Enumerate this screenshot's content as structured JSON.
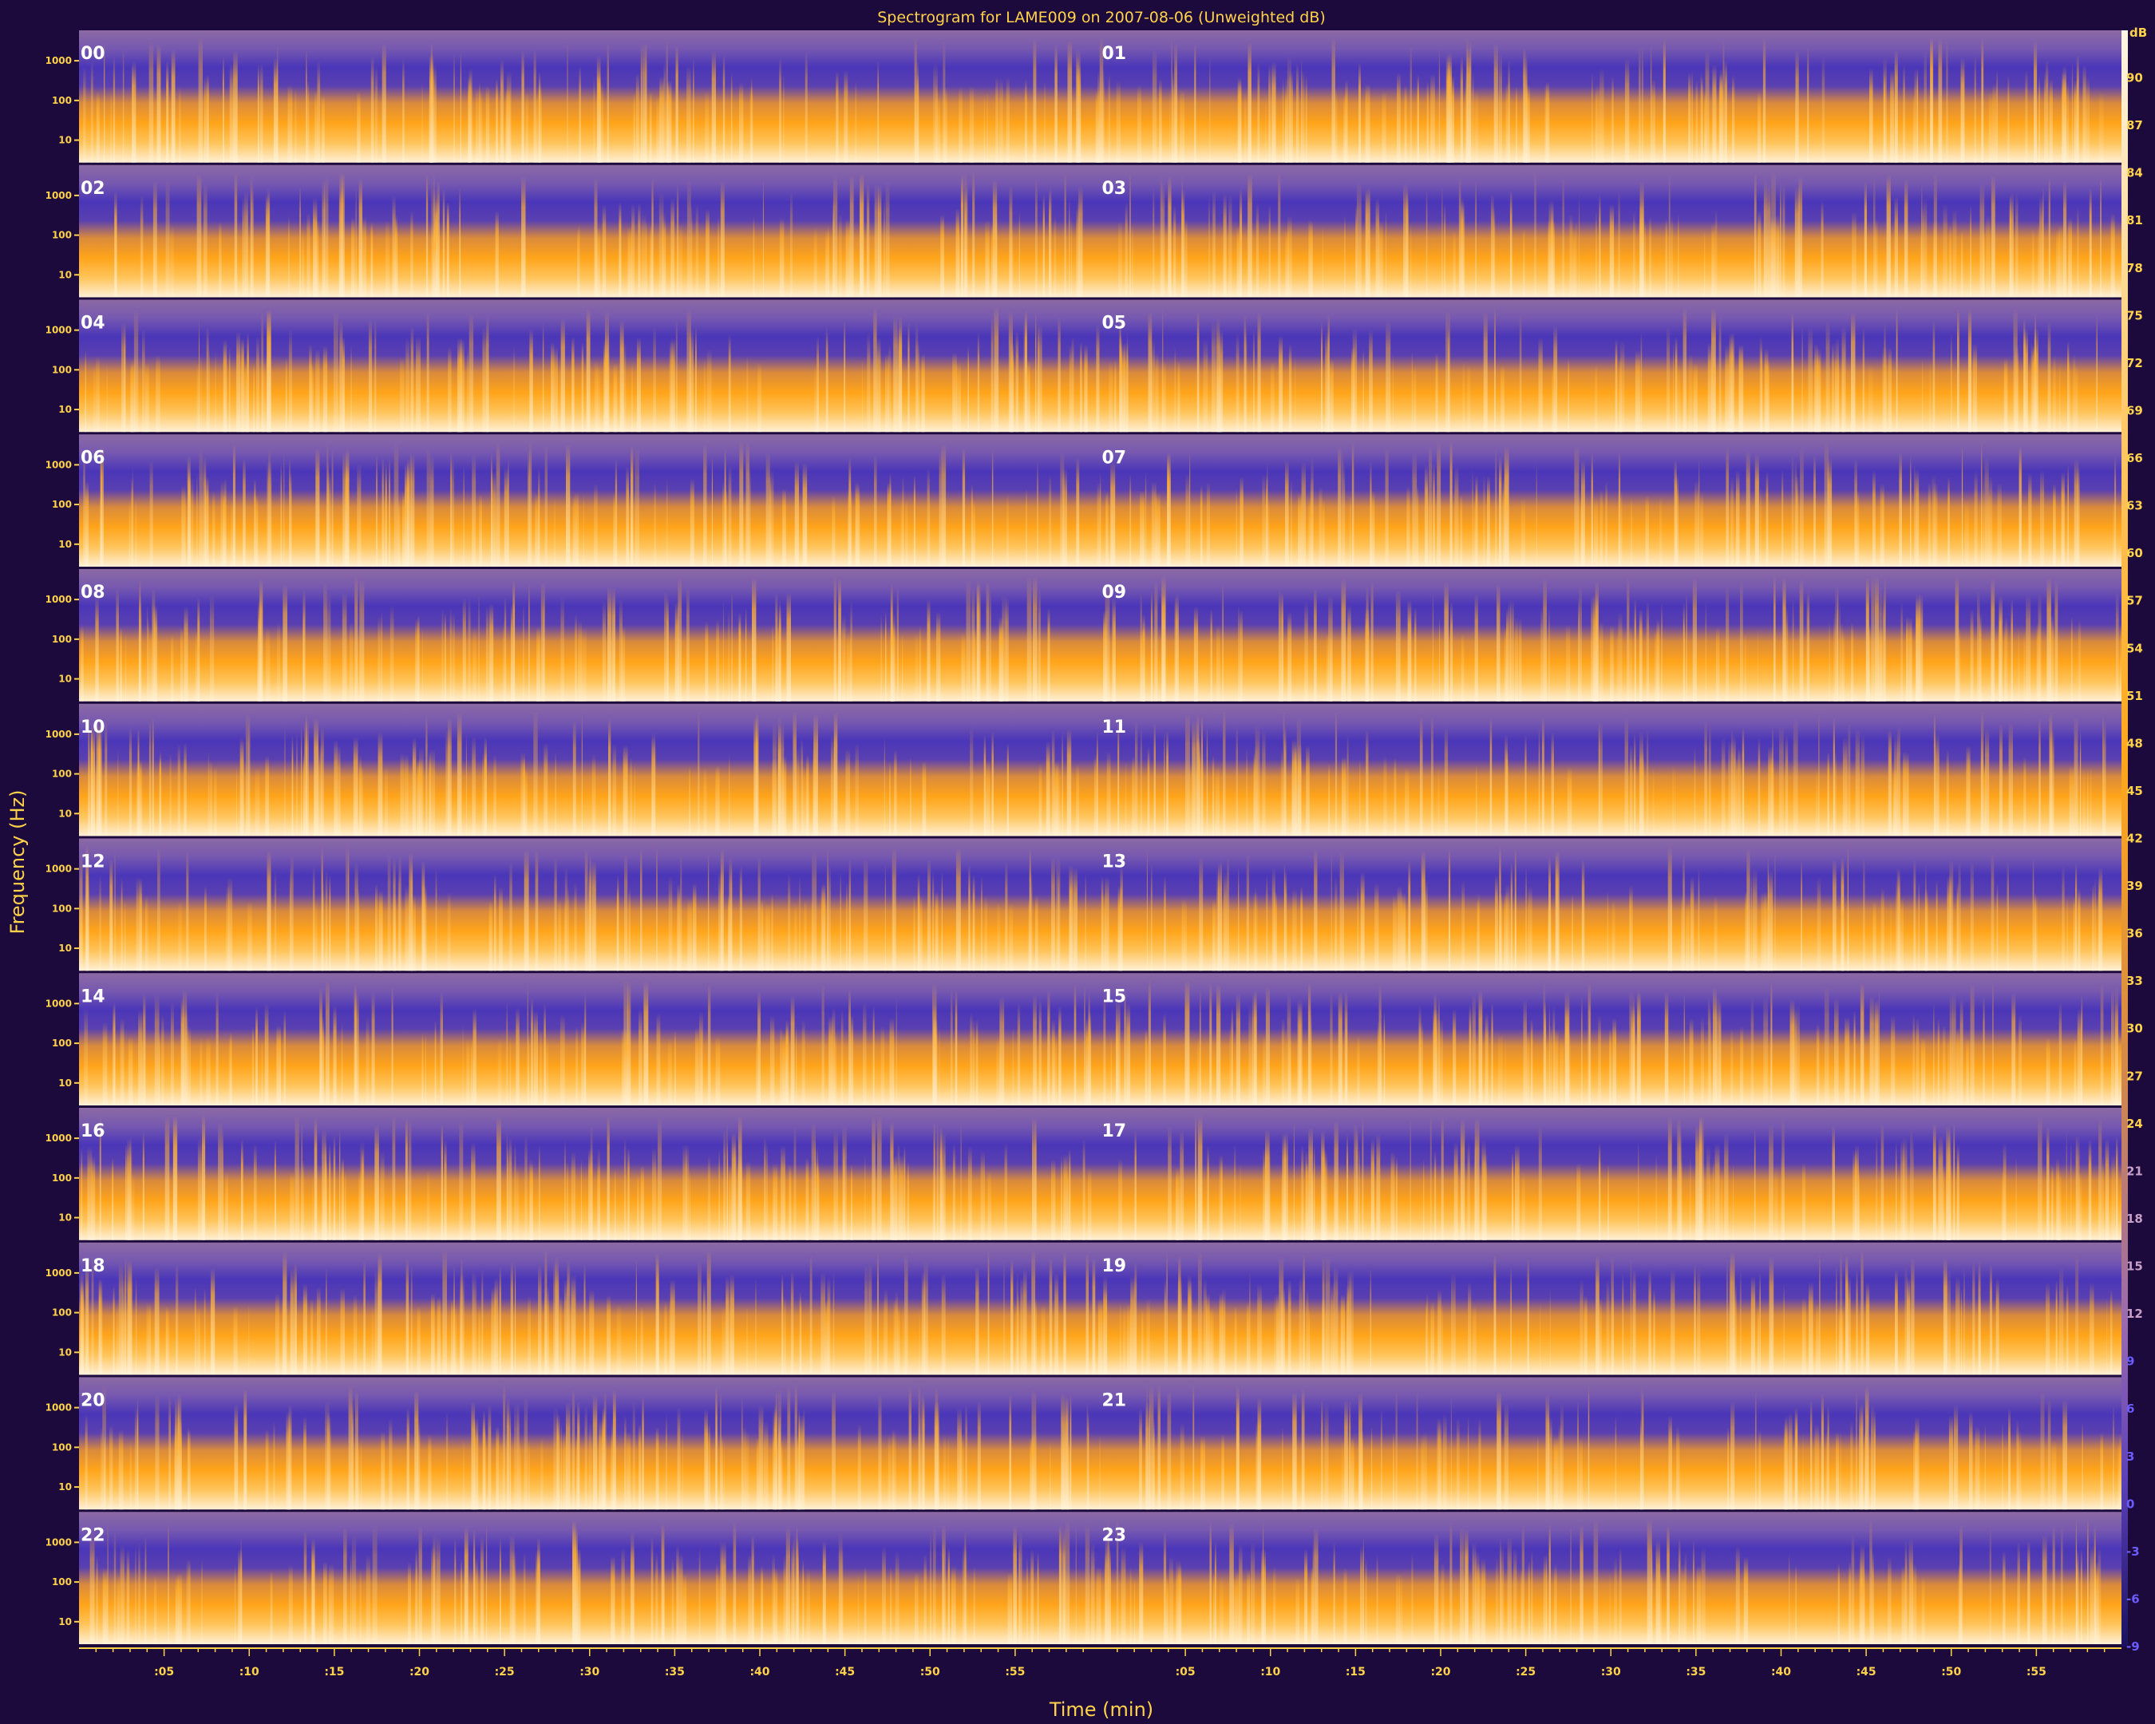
{
  "chart_data": {
    "type": "heatmap",
    "title": "Spectrogram for LAME009 on 2007-08-06 (Unweighted dB)",
    "xlabel": "Time (min)",
    "ylabel": "Frequency (Hz)",
    "colorbar_label": "dB",
    "x_ticks": [
      ":05",
      ":10",
      ":15",
      ":20",
      ":25",
      ":30",
      ":35",
      ":40",
      ":45",
      ":50",
      ":55"
    ],
    "y_ticks": [
      "1000",
      "100",
      "10"
    ],
    "hour_labels": [
      "00",
      "01",
      "02",
      "03",
      "04",
      "05",
      "06",
      "07",
      "08",
      "09",
      "10",
      "11",
      "12",
      "13",
      "14",
      "15",
      "16",
      "17",
      "18",
      "19",
      "20",
      "21",
      "22",
      "23"
    ],
    "colorbar_ticks": [
      90,
      87,
      84,
      81,
      78,
      75,
      72,
      69,
      66,
      63,
      60,
      57,
      54,
      51,
      48,
      45,
      42,
      39,
      36,
      33,
      30,
      27,
      24,
      21,
      18,
      15,
      12,
      9,
      6,
      3,
      0,
      -3,
      -6,
      -9
    ],
    "colorbar_range": [
      -9,
      93
    ],
    "colormap": [
      "#1a1260",
      "#5a3fb8",
      "#9a6ab0",
      "#d2884a",
      "#ffa81c",
      "#ffd07a",
      "#fff6e6"
    ]
  }
}
